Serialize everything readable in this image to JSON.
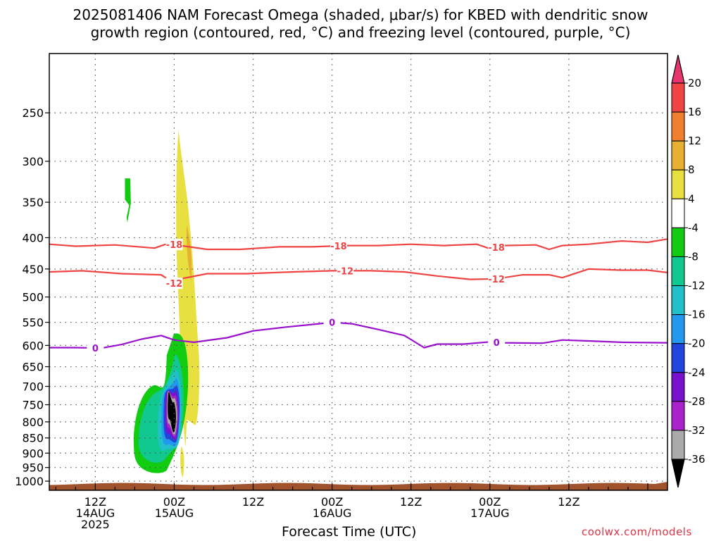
{
  "title": {
    "line1": "2025081406 NAM Forecast Omega (shaded, μbar/s) for KBED with dendritic snow",
    "line2": "growth region (contoured, red, °C) and freezing level (contoured, purple, °C)"
  },
  "xlabel": "Forecast Time (UTC)",
  "credit": "coolwx.com/models",
  "colors": {
    "dgz_contour": "#ee4444",
    "freezing_contour": "#9911cc",
    "terrain": "#a0522d",
    "grid": "#555555"
  },
  "chart_data": {
    "type": "heatmap",
    "x_axis": {
      "range_hours": [
        -7,
        87
      ],
      "ticks": [
        {
          "hour": 0,
          "lines": [
            "12Z",
            "14AUG",
            "2025"
          ]
        },
        {
          "hour": 12,
          "lines": [
            "00Z",
            "15AUG"
          ]
        },
        {
          "hour": 24,
          "lines": [
            "12Z"
          ]
        },
        {
          "hour": 36,
          "lines": [
            "00Z",
            "16AUG"
          ]
        },
        {
          "hour": 48,
          "lines": [
            "12Z"
          ]
        },
        {
          "hour": 60,
          "lines": [
            "00Z",
            "17AUG"
          ]
        },
        {
          "hour": 72,
          "lines": [
            "12Z"
          ]
        }
      ]
    },
    "y_axis": {
      "scale": "log-pressure",
      "range_hpa": [
        1035,
        200
      ],
      "ticks": [
        250,
        300,
        350,
        400,
        450,
        500,
        550,
        600,
        650,
        700,
        750,
        800,
        850,
        900,
        950,
        1000
      ]
    },
    "grid": true,
    "colorbar": {
      "labels": [
        "20",
        "16",
        "12",
        "8",
        "4",
        "-4",
        "-8",
        "-12",
        "-16",
        "-20",
        "-24",
        "-28",
        "-32",
        "-36"
      ],
      "colors": [
        "#e8356e",
        "#ee4444",
        "#f08030",
        "#e8b030",
        "#e8e040",
        "#ffffff",
        "#11cc11",
        "#11c890",
        "#22c0c8",
        "#2299ee",
        "#2244dd",
        "#7711cc",
        "#aa22cc",
        "#aaaaaa",
        "#000000"
      ]
    },
    "contours": [
      {
        "name": "-18",
        "type": "dgz",
        "labels_at_hours": [
          12,
          37,
          61
        ],
        "points": [
          [
            -7,
            410
          ],
          [
            -3,
            413
          ],
          [
            3,
            411
          ],
          [
            9,
            416
          ],
          [
            11,
            409
          ],
          [
            13,
            412
          ],
          [
            17,
            418
          ],
          [
            22,
            418
          ],
          [
            28,
            414
          ],
          [
            33,
            414
          ],
          [
            38,
            412
          ],
          [
            43,
            412
          ],
          [
            48,
            410
          ],
          [
            53,
            412
          ],
          [
            58,
            410
          ],
          [
            60,
            417
          ],
          [
            62,
            412
          ],
          [
            67,
            411
          ],
          [
            69,
            418
          ],
          [
            71,
            412
          ],
          [
            75,
            410
          ],
          [
            80,
            405
          ],
          [
            84,
            407
          ],
          [
            87,
            402
          ]
        ]
      },
      {
        "name": "-12",
        "type": "dgz",
        "labels_at_hours": [
          12,
          38,
          61
        ],
        "points": [
          [
            -7,
            455
          ],
          [
            -2,
            453
          ],
          [
            4,
            458
          ],
          [
            10,
            460
          ],
          [
            12,
            475
          ],
          [
            13,
            467
          ],
          [
            17,
            458
          ],
          [
            23,
            458
          ],
          [
            30,
            455
          ],
          [
            36,
            453
          ],
          [
            42,
            453
          ],
          [
            47,
            455
          ],
          [
            52,
            462
          ],
          [
            57,
            468
          ],
          [
            61,
            467
          ],
          [
            65,
            460
          ],
          [
            69,
            460
          ],
          [
            71,
            465
          ],
          [
            75,
            450
          ],
          [
            80,
            452
          ],
          [
            84,
            452
          ],
          [
            87,
            456
          ]
        ]
      },
      {
        "name": "0",
        "type": "freezing",
        "labels_at_hours": [
          0,
          36,
          61
        ],
        "points": [
          [
            -7,
            605
          ],
          [
            -3,
            605
          ],
          [
            1,
            606
          ],
          [
            4,
            598
          ],
          [
            7,
            586
          ],
          [
            10,
            578
          ],
          [
            12,
            588
          ],
          [
            15,
            593
          ],
          [
            20,
            583
          ],
          [
            24,
            568
          ],
          [
            29,
            560
          ],
          [
            34,
            553
          ],
          [
            36,
            550
          ],
          [
            39,
            553
          ],
          [
            43,
            565
          ],
          [
            47,
            578
          ],
          [
            50,
            605
          ],
          [
            52,
            597
          ],
          [
            56,
            597
          ],
          [
            60,
            592
          ],
          [
            62,
            594
          ],
          [
            68,
            595
          ],
          [
            71,
            588
          ],
          [
            75,
            590
          ],
          [
            80,
            593
          ],
          [
            87,
            594
          ]
        ]
      }
    ],
    "omega_features": [
      {
        "name": "descent-plume",
        "max_value": 8,
        "time_hours": [
          12,
          15
        ],
        "pressure_hpa": [
          325,
          975
        ]
      },
      {
        "name": "ascent-core",
        "min_value": -36,
        "time_hours": [
          7,
          13
        ],
        "pressure_hpa": [
          575,
          960
        ]
      },
      {
        "name": "weak-ascent-upper",
        "min_value": -8,
        "time_hours": [
          4.5,
          5.3
        ],
        "pressure_hpa": [
          320,
          370
        ]
      }
    ]
  }
}
